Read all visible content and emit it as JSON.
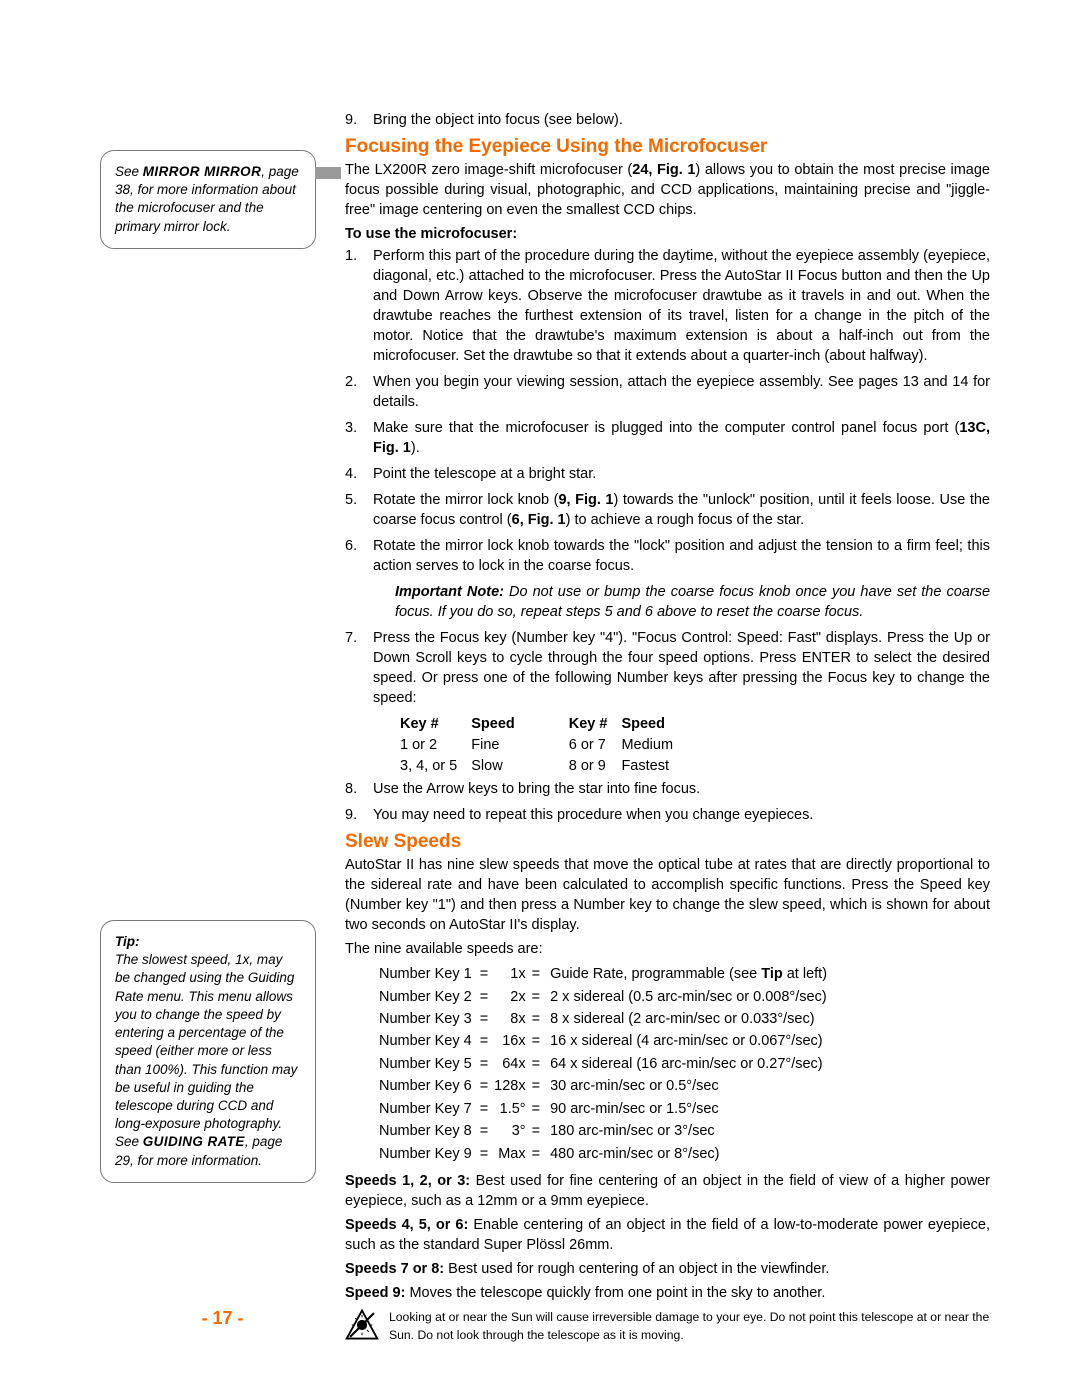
{
  "sidebar1": {
    "pre": "See ",
    "linkname": "MIRROR MIRROR",
    "post": ", page 38, for more information about the microfocuser and the primary mirror lock."
  },
  "sidebar2": {
    "tip_label": "Tip:",
    "text_a": "The slowest speed, 1x, may be changed using the Guiding Rate menu. This menu allows you to change the speed by entering a percentage of the speed (either more or less than 100%). This function may be useful in guiding the telescope during CCD and long-exposure photography. See ",
    "linkname": "GUIDING RATE",
    "text_b": ", page 29, for more information."
  },
  "intro_step9": {
    "num": "9.",
    "text": "Bring the object into focus (see below)."
  },
  "headings": {
    "focusing": "Focusing the Eyepiece Using the Microfocuser",
    "slew": "Slew Speeds"
  },
  "focusing_intro": "The LX200R zero image-shift microfocuser (24, Fig. 1) allows you to obtain the most precise image focus possible during visual, photographic, and CCD applications, maintaining precise and \"jiggle-free\" image centering on even the smallest CCD chips.",
  "to_use_label": "To use the microfocuser:",
  "focus_steps": [
    {
      "num": "1.",
      "text": "Perform this part of the procedure during the daytime, without the eyepiece assembly (eyepiece, diagonal, etc.) attached to the microfocuser. Press the AutoStar II Focus button and then the Up and Down Arrow keys. Observe the microfocuser drawtube as it travels in and out. When the drawtube reaches the furthest extension of its travel, listen for a change in the pitch of the motor. Notice that the drawtube's maximum extension is about a half-inch out from the microfocuser. Set the drawtube so that it extends about a quarter-inch (about halfway)."
    },
    {
      "num": "2.",
      "text": "When you begin your viewing session, attach the eyepiece assembly. See pages 13 and 14 for details."
    },
    {
      "num": "3.",
      "text": "Make sure that the microfocuser is plugged into the computer control panel focus port (13C, Fig. 1)."
    },
    {
      "num": "4.",
      "text": "Point the telescope at a bright star."
    },
    {
      "num": "5.",
      "text": "Rotate the mirror lock knob (9, Fig. 1) towards the \"unlock\" position, until it feels loose. Use the coarse focus control (6, Fig. 1) to achieve a rough focus of the star."
    },
    {
      "num": "6.",
      "text": "Rotate the mirror lock knob towards the \"lock\" position and adjust the tension to a firm feel; this action serves to lock in the coarse focus."
    }
  ],
  "important_note": {
    "label": "Important Note:",
    "text": " Do not use or bump the coarse focus knob once you have set the coarse focus. If you do so, repeat steps 5 and 6 above to reset the coarse focus."
  },
  "focus_step7": {
    "num": "7.",
    "text": "Press the Focus key (Number key \"4\"). \"Focus Control: Speed: Fast\" displays. Press the Up or Down Scroll keys to cycle through the four speed options. Press ENTER to select the desired speed. Or press one of the following Number keys after pressing the Focus key to change the speed:"
  },
  "focus_speed_table": {
    "head": [
      "Key #",
      "Speed",
      "Key #",
      "Speed"
    ],
    "rows": [
      [
        "1 or 2",
        "Fine",
        "6 or 7",
        "Medium"
      ],
      [
        "3, 4, or 5",
        "Slow",
        "8 or 9",
        "Fastest"
      ]
    ]
  },
  "focus_step8": {
    "num": "8.",
    "text": "Use the Arrow keys to bring the star into fine focus."
  },
  "focus_step9": {
    "num": "9.",
    "text": "You may need to repeat this procedure when you change eyepieces."
  },
  "slew_intro": "AutoStar II has nine slew speeds that move the optical tube at rates that are directly proportional to the sidereal rate and have been calculated to accomplish specific functions. Press the Speed key (Number key \"1\") and then press a Number key to change the slew speed, which is shown for about two seconds on AutoStar II's display.",
  "slew_avail": "The nine available speeds are:",
  "slew_rows": [
    {
      "key": "Number Key 1",
      "mult": "1x",
      "desc": "Guide Rate, programmable (see Tip at left)"
    },
    {
      "key": "Number Key 2",
      "mult": "2x",
      "desc": "2  x sidereal (0.5 arc-min/sec or 0.008°/sec)"
    },
    {
      "key": "Number Key 3",
      "mult": "8x",
      "desc": "8  x sidereal (2 arc-min/sec or 0.033°/sec)"
    },
    {
      "key": "Number Key 4",
      "mult": "16x",
      "desc": "16  x sidereal (4 arc-min/sec or 0.067°/sec)"
    },
    {
      "key": "Number Key 5",
      "mult": "64x",
      "desc": "64  x sidereal (16 arc-min/sec or 0.27°/sec)"
    },
    {
      "key": "Number Key 6",
      "mult": "128x",
      "desc": "30  arc-min/sec or 0.5°/sec"
    },
    {
      "key": "Number Key 7",
      "mult": "1.5°",
      "desc": "90  arc-min/sec or 1.5°/sec"
    },
    {
      "key": "Number Key 8",
      "mult": "3°",
      "desc": "180  arc-min/sec or 3°/sec"
    },
    {
      "key": "Number Key 9",
      "mult": "Max",
      "desc": "480  arc-min/sec or 8°/sec)"
    }
  ],
  "speed_notes": [
    {
      "label": "Speeds 1, 2, or 3:",
      "text": " Best used for fine centering of an object in the field of view of a higher power eyepiece, such as a 12mm or a 9mm eyepiece."
    },
    {
      "label": "Speeds 4, 5, or 6:",
      "text": " Enable centering of an object in the field of a low-to-moderate power eyepiece, such as the standard Super Plössl 26mm."
    },
    {
      "label": "Speeds 7 or 8:",
      "text": " Best used for rough centering of an object in the viewfinder."
    },
    {
      "label": "Speed 9:",
      "text": " Moves the telescope quickly from one point in the sky to another."
    }
  ],
  "page_number": "- 17 -",
  "warning": "Looking at or near the Sun will cause irreversible  damage to your eye. Do not point this telescope at or near the Sun. Do not look through the telescope as it is moving.",
  "colors": {
    "accent": "#f26a00"
  }
}
